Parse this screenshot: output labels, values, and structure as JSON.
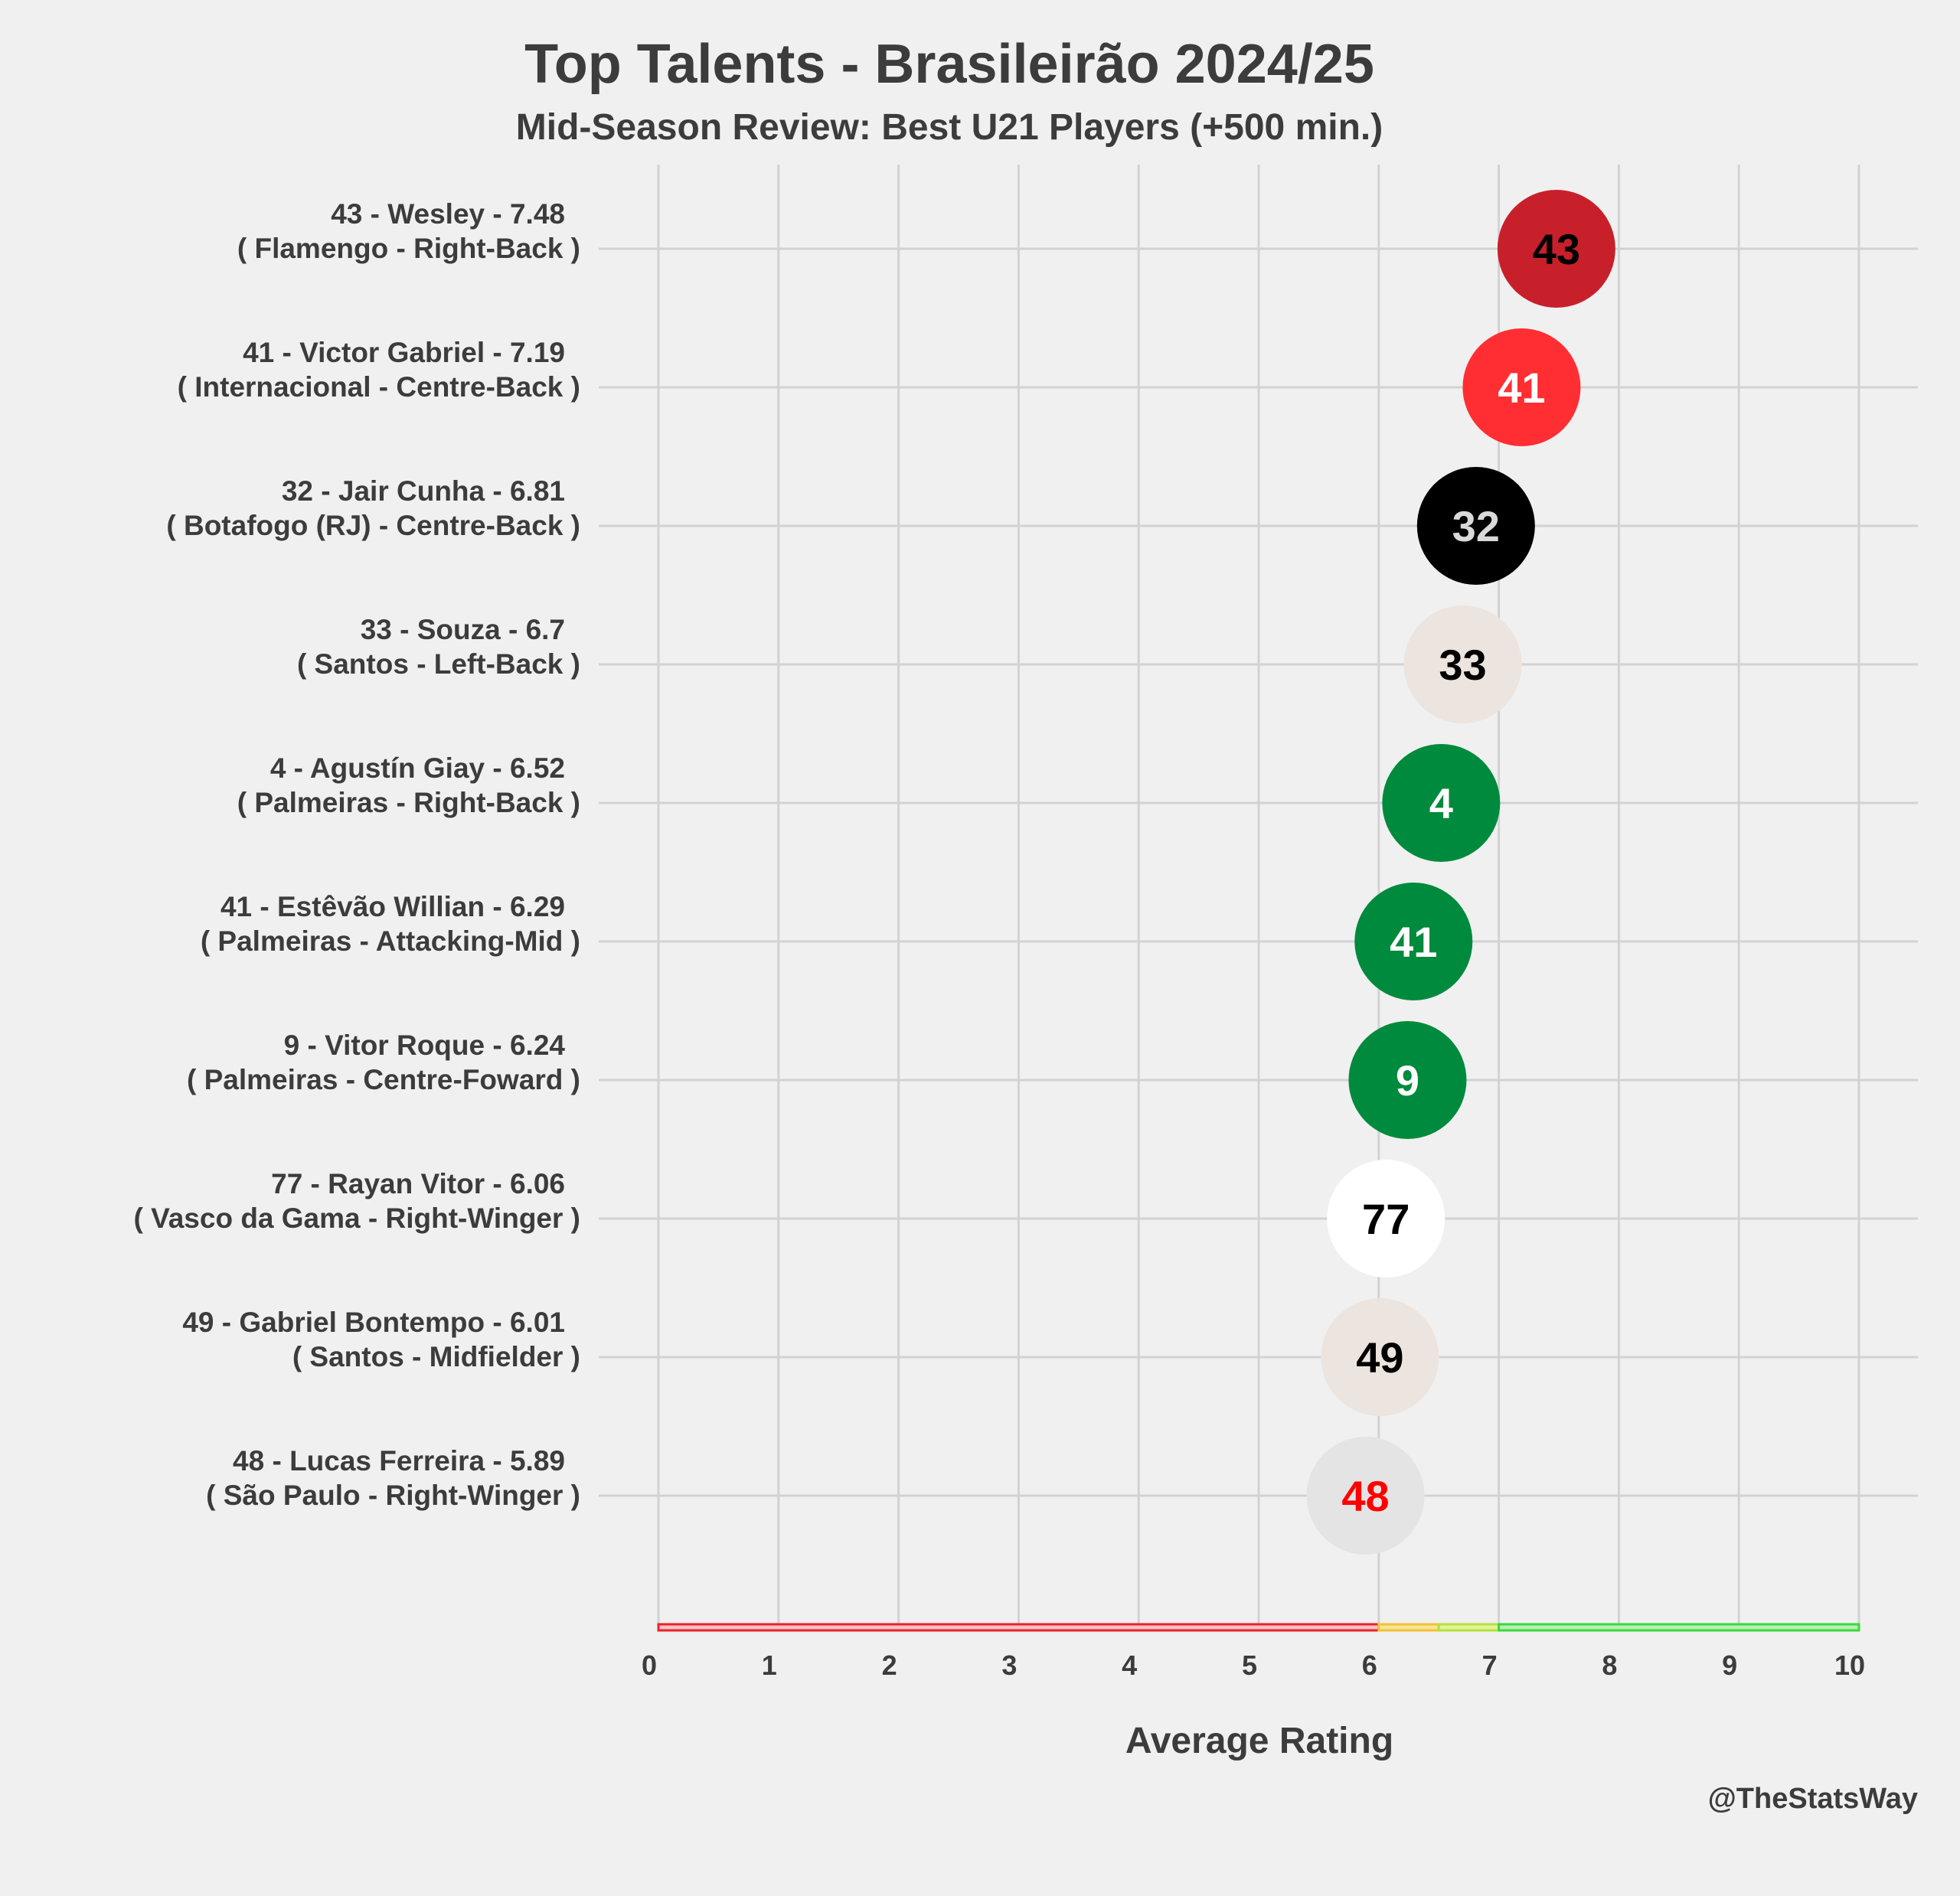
{
  "chart_data": {
    "type": "scatter",
    "title": "Top Talents - Brasileirão 2024/25",
    "subtitle": "Mid-Season Review: Best U21 Players (+500 min.)",
    "xlabel": "Average Rating",
    "xlim": [
      0,
      10
    ],
    "xticks": [
      "0",
      "1",
      "2",
      "3",
      "4",
      "5",
      "6",
      "7",
      "8",
      "9",
      "10"
    ],
    "grid": true,
    "credit": "@TheStatsWay",
    "rating_bands": [
      {
        "from": 0,
        "to": 6,
        "color": "#e8232a",
        "fill": "#f6c3c4"
      },
      {
        "from": 6,
        "to": 6.5,
        "color": "#f2c230",
        "fill": "#f7e39a"
      },
      {
        "from": 6.5,
        "to": 7,
        "color": "#b6e13a",
        "fill": "#e1f39c"
      },
      {
        "from": 7,
        "to": 10,
        "color": "#3ad83a",
        "fill": "#b9efb9"
      }
    ],
    "players": [
      {
        "line1": "43 - Wesley - 7.48",
        "line2": "( Flamengo - Right-Back )",
        "number": "43",
        "rating": 7.48,
        "bubble_color": "#c8202a",
        "text_color": "#000000"
      },
      {
        "line1": "41 - Victor Gabriel - 7.19",
        "line2": "( Internacional - Centre-Back )",
        "number": "41",
        "rating": 7.19,
        "bubble_color": "#ff2e33",
        "text_color": "#ffffff"
      },
      {
        "line1": "32 - Jair Cunha - 6.81",
        "line2": "( Botafogo (RJ) - Centre-Back )",
        "number": "32",
        "rating": 6.81,
        "bubble_color": "#000000",
        "text_color": "#d9d9d9"
      },
      {
        "line1": "33 - Souza - 6.7",
        "line2": "( Santos - Left-Back )",
        "number": "33",
        "rating": 6.7,
        "bubble_color": "#ece4de",
        "text_color": "#000000"
      },
      {
        "line1": "4 - Agustín Giay - 6.52",
        "line2": "( Palmeiras - Right-Back )",
        "number": "4",
        "rating": 6.52,
        "bubble_color": "#008a3d",
        "text_color": "#ffffff"
      },
      {
        "line1": "41 - Estêvão Willian - 6.29",
        "line2": "( Palmeiras - Attacking-Mid )",
        "number": "41",
        "rating": 6.29,
        "bubble_color": "#008a3d",
        "text_color": "#ffffff"
      },
      {
        "line1": "9 - Vitor Roque - 6.24",
        "line2": "( Palmeiras - Centre-Foward )",
        "number": "9",
        "rating": 6.24,
        "bubble_color": "#008a3d",
        "text_color": "#ffffff"
      },
      {
        "line1": "77 - Rayan Vitor - 6.06",
        "line2": "( Vasco da Gama - Right-Winger )",
        "number": "77",
        "rating": 6.06,
        "bubble_color": "#ffffff",
        "text_color": "#000000"
      },
      {
        "line1": "49 - Gabriel Bontempo - 6.01",
        "line2": "( Santos - Midfielder )",
        "number": "49",
        "rating": 6.01,
        "bubble_color": "#ece4de",
        "text_color": "#000000"
      },
      {
        "line1": "48 - Lucas Ferreira - 5.89",
        "line2": "( São Paulo - Right-Winger )",
        "number": "48",
        "rating": 5.89,
        "bubble_color": "#e4e4e4",
        "text_color": "#ff0000"
      }
    ]
  }
}
